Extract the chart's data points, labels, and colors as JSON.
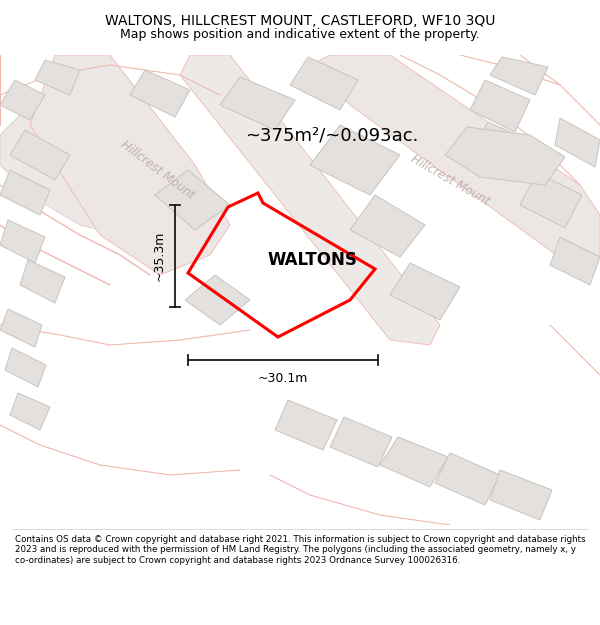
{
  "title_line1": "WALTONS, HILLCREST MOUNT, CASTLEFORD, WF10 3QU",
  "title_line2": "Map shows position and indicative extent of the property.",
  "area_text": "~375m²/~0.093ac.",
  "label": "WALTONS",
  "dim_v": "~35.3m",
  "dim_h": "~30.1m",
  "street_name": "Hillcrest Mount",
  "footer": "Contains OS data © Crown copyright and database right 2021. This information is subject to Crown copyright and database rights 2023 and is reproduced with the permission of HM Land Registry. The polygons (including the associated geometry, namely x, y co-ordinates) are subject to Crown copyright and database rights 2023 Ordnance Survey 100026316.",
  "map_bg": "#f5f4f2",
  "property_color": "#ff0000",
  "road_line_color": "#f0b8b0",
  "road_fill_color": "#f0d0ca",
  "building_color": "#e3e0de",
  "building_edge": "#c8c4c0",
  "dim_line_color": "#1a1a1a",
  "street_label_color": "#c0b0aa",
  "title_fontsize": 10,
  "subtitle_fontsize": 9,
  "area_fontsize": 13,
  "label_fontsize": 12,
  "dim_fontsize": 9,
  "footer_fontsize": 6.3
}
